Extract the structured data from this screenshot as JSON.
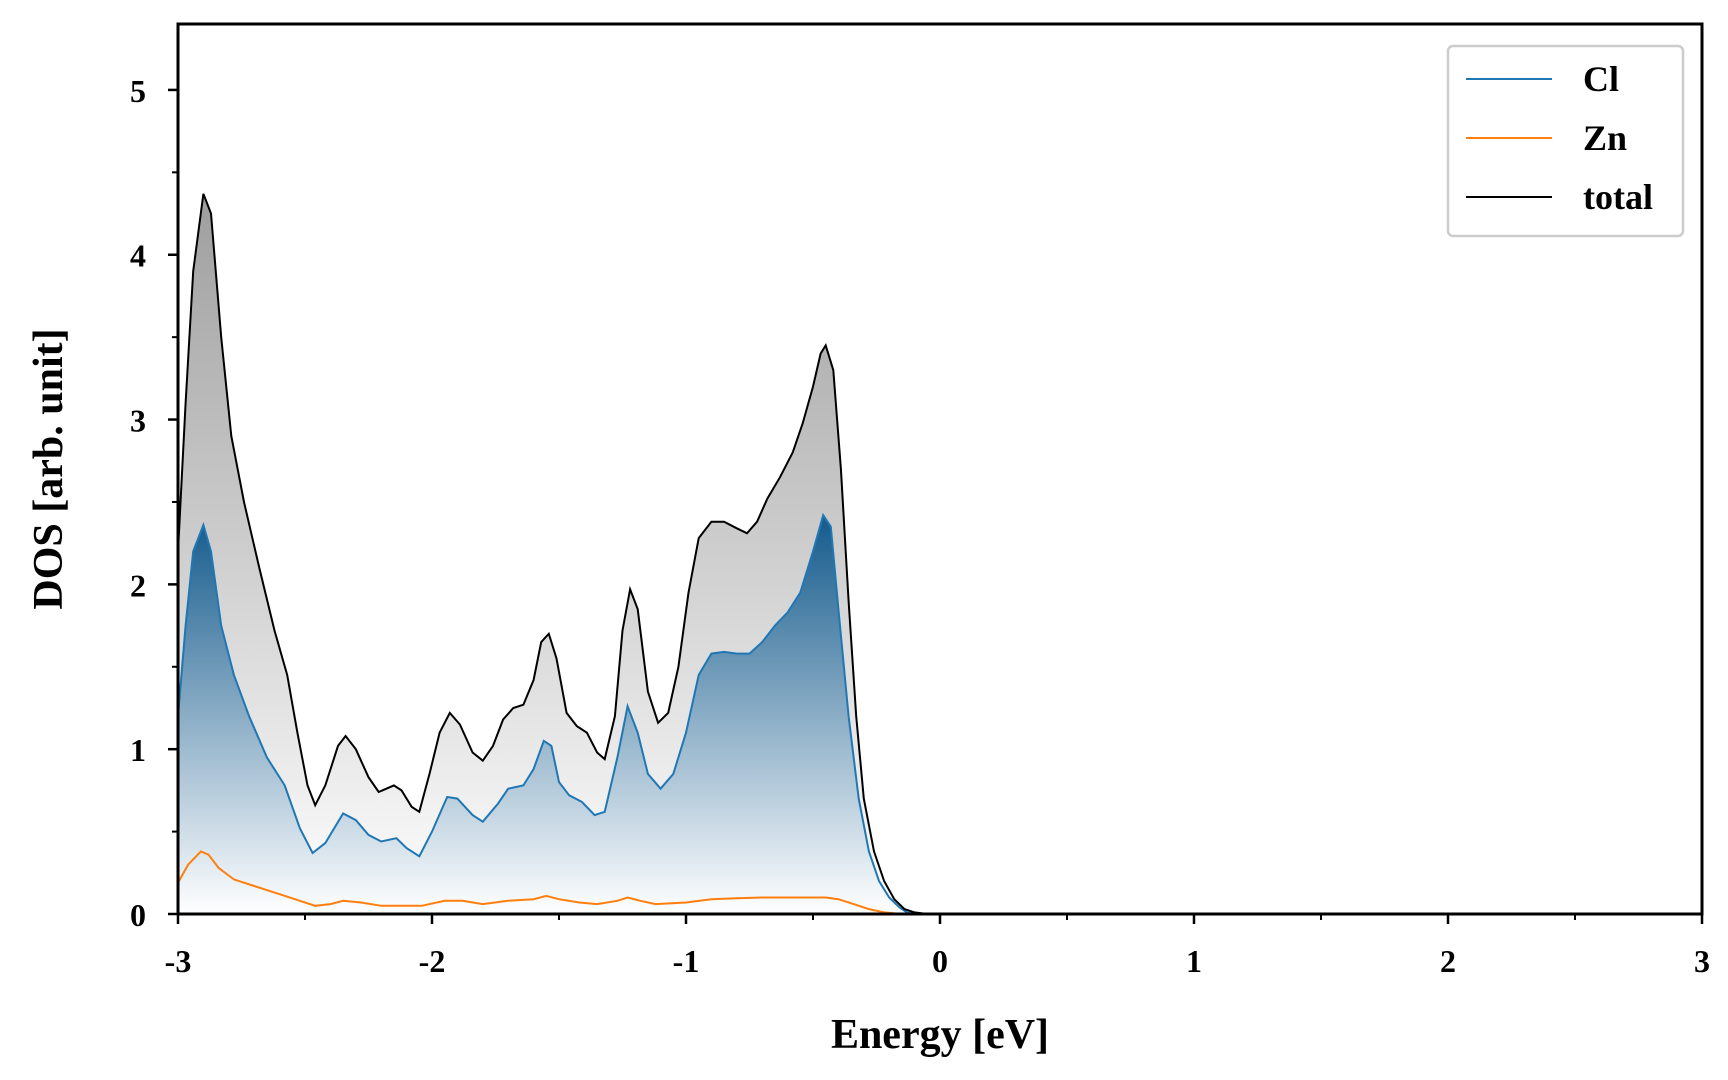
{
  "chart_data": {
    "type": "area",
    "title": "",
    "xlabel": "Energy [eV]",
    "ylabel": "DOS [arb. unit]",
    "xlim": [
      -3,
      3
    ],
    "ylim": [
      0,
      5.4
    ],
    "xticks": [
      -3,
      -2,
      -1,
      0,
      1,
      2,
      3
    ],
    "xtick_labels": [
      "-3",
      "-2",
      "-1",
      "0",
      "1",
      "2",
      "3"
    ],
    "yticks": [
      0,
      1,
      2,
      3,
      4,
      5
    ],
    "ytick_labels": [
      "0",
      "1",
      "2",
      "3",
      "4",
      "5"
    ],
    "grid": false,
    "legend_position": "top-right",
    "series": [
      {
        "name": "Cl",
        "color": "#1f77b4",
        "fill": "gradient-blue",
        "points": [
          [
            -3.0,
            1.2
          ],
          [
            -2.97,
            1.75
          ],
          [
            -2.94,
            2.2
          ],
          [
            -2.9,
            2.36
          ],
          [
            -2.87,
            2.2
          ],
          [
            -2.83,
            1.75
          ],
          [
            -2.78,
            1.45
          ],
          [
            -2.72,
            1.2
          ],
          [
            -2.65,
            0.95
          ],
          [
            -2.58,
            0.78
          ],
          [
            -2.52,
            0.52
          ],
          [
            -2.47,
            0.37
          ],
          [
            -2.42,
            0.43
          ],
          [
            -2.35,
            0.61
          ],
          [
            -2.3,
            0.57
          ],
          [
            -2.25,
            0.48
          ],
          [
            -2.2,
            0.44
          ],
          [
            -2.14,
            0.46
          ],
          [
            -2.1,
            0.4
          ],
          [
            -2.05,
            0.35
          ],
          [
            -2.0,
            0.5
          ],
          [
            -1.94,
            0.71
          ],
          [
            -1.9,
            0.7
          ],
          [
            -1.84,
            0.6
          ],
          [
            -1.8,
            0.56
          ],
          [
            -1.74,
            0.67
          ],
          [
            -1.7,
            0.76
          ],
          [
            -1.64,
            0.78
          ],
          [
            -1.6,
            0.88
          ],
          [
            -1.56,
            1.05
          ],
          [
            -1.53,
            1.02
          ],
          [
            -1.5,
            0.8
          ],
          [
            -1.46,
            0.72
          ],
          [
            -1.41,
            0.68
          ],
          [
            -1.36,
            0.6
          ],
          [
            -1.32,
            0.62
          ],
          [
            -1.27,
            0.95
          ],
          [
            -1.23,
            1.26
          ],
          [
            -1.19,
            1.1
          ],
          [
            -1.15,
            0.85
          ],
          [
            -1.1,
            0.76
          ],
          [
            -1.05,
            0.85
          ],
          [
            -1.0,
            1.1
          ],
          [
            -0.95,
            1.45
          ],
          [
            -0.9,
            1.58
          ],
          [
            -0.85,
            1.59
          ],
          [
            -0.8,
            1.58
          ],
          [
            -0.75,
            1.58
          ],
          [
            -0.7,
            1.65
          ],
          [
            -0.65,
            1.75
          ],
          [
            -0.6,
            1.83
          ],
          [
            -0.55,
            1.95
          ],
          [
            -0.5,
            2.2
          ],
          [
            -0.46,
            2.42
          ],
          [
            -0.43,
            2.35
          ],
          [
            -0.4,
            1.85
          ],
          [
            -0.36,
            1.2
          ],
          [
            -0.32,
            0.7
          ],
          [
            -0.28,
            0.38
          ],
          [
            -0.24,
            0.2
          ],
          [
            -0.2,
            0.1
          ],
          [
            -0.16,
            0.04
          ],
          [
            -0.13,
            0.01
          ],
          [
            -0.1,
            0.0
          ],
          [
            3.0,
            0.0
          ]
        ]
      },
      {
        "name": "Zn",
        "color": "#ff7f0e",
        "points": [
          [
            -3.0,
            0.19
          ],
          [
            -2.96,
            0.3
          ],
          [
            -2.91,
            0.38
          ],
          [
            -2.88,
            0.36
          ],
          [
            -2.84,
            0.28
          ],
          [
            -2.78,
            0.21
          ],
          [
            -2.7,
            0.17
          ],
          [
            -2.6,
            0.12
          ],
          [
            -2.52,
            0.08
          ],
          [
            -2.46,
            0.05
          ],
          [
            -2.4,
            0.06
          ],
          [
            -2.35,
            0.08
          ],
          [
            -2.28,
            0.07
          ],
          [
            -2.2,
            0.05
          ],
          [
            -2.1,
            0.05
          ],
          [
            -2.04,
            0.05
          ],
          [
            -1.95,
            0.08
          ],
          [
            -1.88,
            0.08
          ],
          [
            -1.8,
            0.06
          ],
          [
            -1.7,
            0.08
          ],
          [
            -1.6,
            0.09
          ],
          [
            -1.55,
            0.11
          ],
          [
            -1.5,
            0.09
          ],
          [
            -1.42,
            0.07
          ],
          [
            -1.35,
            0.06
          ],
          [
            -1.27,
            0.08
          ],
          [
            -1.23,
            0.1
          ],
          [
            -1.18,
            0.08
          ],
          [
            -1.12,
            0.06
          ],
          [
            -1.0,
            0.07
          ],
          [
            -0.9,
            0.09
          ],
          [
            -0.8,
            0.095
          ],
          [
            -0.7,
            0.1
          ],
          [
            -0.6,
            0.1
          ],
          [
            -0.5,
            0.1
          ],
          [
            -0.45,
            0.1
          ],
          [
            -0.4,
            0.09
          ],
          [
            -0.34,
            0.06
          ],
          [
            -0.28,
            0.03
          ],
          [
            -0.22,
            0.01
          ],
          [
            -0.15,
            0.0
          ],
          [
            3.0,
            0.0
          ]
        ]
      },
      {
        "name": "total",
        "color": "#000000",
        "fill": "gradient-gray",
        "points": [
          [
            -3.0,
            2.2
          ],
          [
            -2.97,
            3.1
          ],
          [
            -2.94,
            3.9
          ],
          [
            -2.9,
            4.37
          ],
          [
            -2.87,
            4.25
          ],
          [
            -2.83,
            3.5
          ],
          [
            -2.79,
            2.9
          ],
          [
            -2.74,
            2.5
          ],
          [
            -2.68,
            2.1
          ],
          [
            -2.62,
            1.72
          ],
          [
            -2.57,
            1.45
          ],
          [
            -2.53,
            1.1
          ],
          [
            -2.49,
            0.78
          ],
          [
            -2.46,
            0.66
          ],
          [
            -2.42,
            0.78
          ],
          [
            -2.37,
            1.02
          ],
          [
            -2.34,
            1.08
          ],
          [
            -2.3,
            1.0
          ],
          [
            -2.25,
            0.83
          ],
          [
            -2.21,
            0.74
          ],
          [
            -2.15,
            0.78
          ],
          [
            -2.12,
            0.75
          ],
          [
            -2.08,
            0.65
          ],
          [
            -2.05,
            0.62
          ],
          [
            -2.01,
            0.85
          ],
          [
            -1.97,
            1.1
          ],
          [
            -1.93,
            1.22
          ],
          [
            -1.89,
            1.15
          ],
          [
            -1.84,
            0.98
          ],
          [
            -1.8,
            0.93
          ],
          [
            -1.76,
            1.02
          ],
          [
            -1.72,
            1.18
          ],
          [
            -1.68,
            1.25
          ],
          [
            -1.64,
            1.27
          ],
          [
            -1.6,
            1.42
          ],
          [
            -1.57,
            1.65
          ],
          [
            -1.54,
            1.7
          ],
          [
            -1.51,
            1.55
          ],
          [
            -1.47,
            1.22
          ],
          [
            -1.43,
            1.14
          ],
          [
            -1.39,
            1.1
          ],
          [
            -1.35,
            0.98
          ],
          [
            -1.32,
            0.94
          ],
          [
            -1.28,
            1.2
          ],
          [
            -1.25,
            1.72
          ],
          [
            -1.22,
            1.97
          ],
          [
            -1.19,
            1.85
          ],
          [
            -1.15,
            1.35
          ],
          [
            -1.11,
            1.16
          ],
          [
            -1.07,
            1.22
          ],
          [
            -1.03,
            1.5
          ],
          [
            -0.99,
            1.95
          ],
          [
            -0.95,
            2.28
          ],
          [
            -0.9,
            2.38
          ],
          [
            -0.85,
            2.38
          ],
          [
            -0.8,
            2.34
          ],
          [
            -0.76,
            2.31
          ],
          [
            -0.72,
            2.38
          ],
          [
            -0.68,
            2.52
          ],
          [
            -0.63,
            2.65
          ],
          [
            -0.58,
            2.8
          ],
          [
            -0.54,
            2.98
          ],
          [
            -0.5,
            3.2
          ],
          [
            -0.47,
            3.4
          ],
          [
            -0.45,
            3.45
          ],
          [
            -0.42,
            3.3
          ],
          [
            -0.39,
            2.7
          ],
          [
            -0.36,
            1.9
          ],
          [
            -0.33,
            1.2
          ],
          [
            -0.3,
            0.7
          ],
          [
            -0.26,
            0.38
          ],
          [
            -0.22,
            0.2
          ],
          [
            -0.18,
            0.09
          ],
          [
            -0.14,
            0.03
          ],
          [
            -0.1,
            0.01
          ],
          [
            -0.05,
            0.0
          ],
          [
            3.0,
            0.0
          ]
        ]
      }
    ]
  }
}
